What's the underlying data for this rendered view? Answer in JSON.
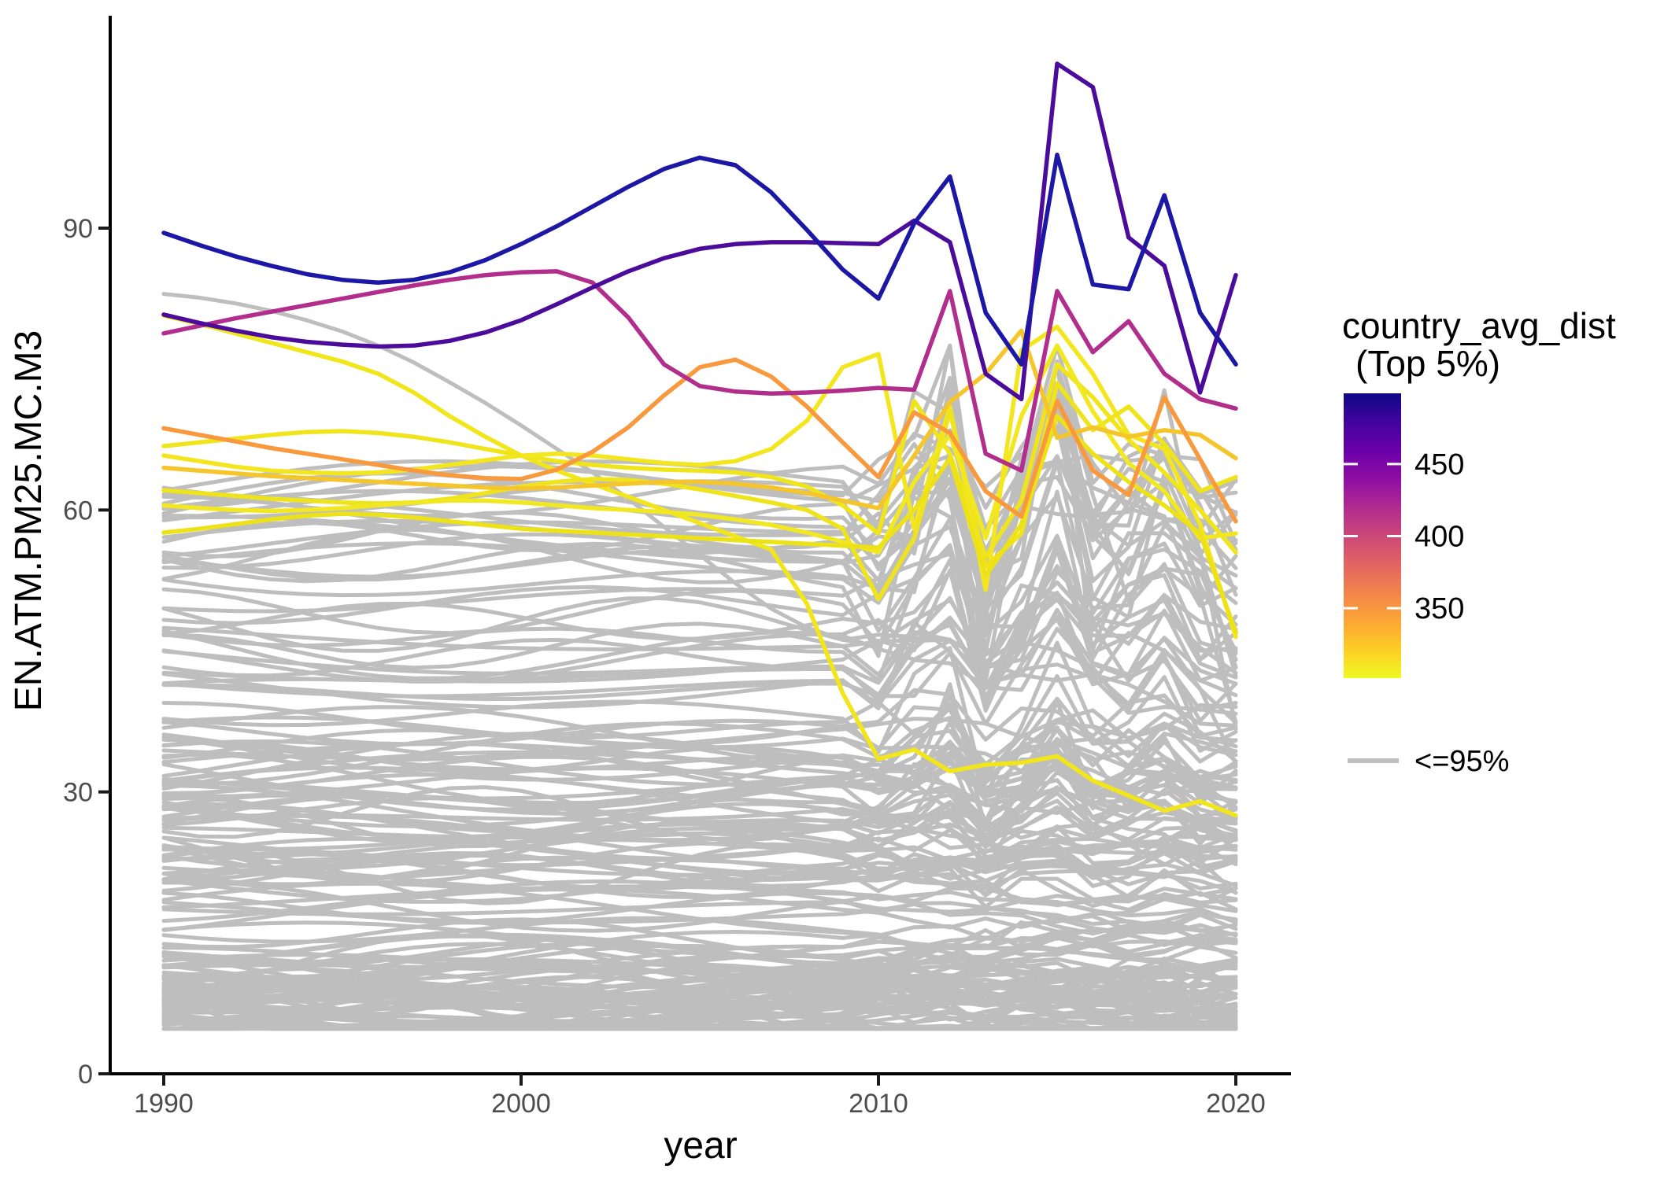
{
  "chart_data": {
    "type": "line",
    "title": "",
    "xlabel": "year",
    "ylabel": "EN.ATM.PM25.MC.M3",
    "x_ticks": [
      1990,
      2000,
      2010,
      2020
    ],
    "y_ticks": [
      0,
      30,
      60,
      90
    ],
    "xlim": [
      1988.5,
      2021.5
    ],
    "ylim": [
      0,
      112.5
    ],
    "grid": false,
    "years": [
      1990,
      1991,
      1992,
      1993,
      1994,
      1995,
      1996,
      1997,
      1998,
      1999,
      2000,
      2001,
      2002,
      2003,
      2004,
      2005,
      2006,
      2007,
      2008,
      2009,
      2010,
      2011,
      2012,
      2013,
      2014,
      2015,
      2016,
      2017,
      2018,
      2019,
      2020
    ],
    "legend": {
      "position": "right",
      "title_line1": "country_avg_dist",
      "title_line2": "(Top 5%)",
      "colorbar_ticks": [
        450,
        400,
        350
      ],
      "colorbar_value_range": [
        301.5,
        499
      ],
      "colorbar_stops": [
        {
          "o": 0.0,
          "c": "#0d0887"
        },
        {
          "o": 0.1,
          "c": "#41049d"
        },
        {
          "o": 0.2,
          "c": "#6a00a8"
        },
        {
          "o": 0.3,
          "c": "#8f0da4"
        },
        {
          "o": 0.4,
          "c": "#b12a90"
        },
        {
          "o": 0.5,
          "c": "#cc4778"
        },
        {
          "o": 0.6,
          "c": "#e16462"
        },
        {
          "o": 0.7,
          "c": "#f2844b"
        },
        {
          "o": 0.8,
          "c": "#fca636"
        },
        {
          "o": 0.9,
          "c": "#fcce25"
        },
        {
          "o": 1.0,
          "c": "#f0f921"
        }
      ],
      "gray_label": "<=95%",
      "gray_color": "#bebebe"
    },
    "series": [
      {
        "id": "gray-highlight",
        "group": "le95",
        "dist": null,
        "color": "#bebebe",
        "values": [
          83.0,
          82.6,
          82.0,
          81.2,
          80.2,
          79.0,
          77.5,
          75.7,
          73.6,
          71.4,
          69.0,
          66.5,
          64.0,
          61.2,
          58.2,
          55.2,
          52.2,
          49.5,
          47.5,
          46.2,
          45.5,
          52.0,
          65.0,
          50.0,
          57.0,
          72.0,
          65.0,
          60.0,
          63.0,
          52.0,
          45.0
        ]
      },
      {
        "id": "top5-yellow-descender",
        "group": "top5",
        "dist": 300,
        "color": "#f1e51c",
        "values": [
          80.7,
          79.8,
          78.8,
          77.8,
          76.8,
          75.8,
          74.5,
          72.5,
          70.0,
          67.8,
          65.8,
          64.2,
          62.8,
          61.4,
          60.0,
          58.6,
          57.2,
          55.8,
          50.0,
          40.5,
          33.5,
          34.5,
          32.2,
          32.9,
          33.1,
          33.8,
          31.2,
          29.6,
          28.0,
          29.0,
          27.5
        ]
      },
      {
        "id": "top5-yellow-2",
        "group": "top5",
        "dist": 310,
        "color": "#f0e41a",
        "values": [
          66.8,
          67.2,
          67.6,
          68.0,
          68.3,
          68.4,
          68.2,
          67.8,
          67.2,
          66.5,
          65.8,
          65.2,
          64.8,
          64.5,
          64.3,
          64.2,
          64.0,
          63.5,
          62.5,
          60.5,
          57.5,
          71.6,
          66.0,
          55.0,
          61.0,
          75.5,
          72.0,
          67.5,
          64.0,
          60.0,
          55.5
        ]
      },
      {
        "id": "top5-yellow-3",
        "group": "top5",
        "dist": 315,
        "color": "#f3e61f",
        "values": [
          65.8,
          65.2,
          64.6,
          64.2,
          64.0,
          63.9,
          64.0,
          64.3,
          64.8,
          65.3,
          65.8,
          66.0,
          65.8,
          65.4,
          65.0,
          64.8,
          65.2,
          66.5,
          69.5,
          75.2,
          76.6,
          58.0,
          71.0,
          51.5,
          77.0,
          79.5,
          74.5,
          68.0,
          66.5,
          58.5,
          46.5
        ]
      },
      {
        "id": "top5-yellow-4",
        "group": "top5",
        "dist": 320,
        "color": "#efe41c",
        "values": [
          62.1,
          61.8,
          61.5,
          61.2,
          61.0,
          60.8,
          60.7,
          60.8,
          61.2,
          61.8,
          62.5,
          63.0,
          63.3,
          63.2,
          62.8,
          62.2,
          61.5,
          60.8,
          60.0,
          58.0,
          50.5,
          57.0,
          70.5,
          54.0,
          57.5,
          73.5,
          68.5,
          71.0,
          67.0,
          62.0,
          63.5
        ]
      },
      {
        "id": "top5-yellow-5",
        "group": "top5",
        "dist": 326,
        "color": "#f2e822",
        "values": [
          60.5,
          60.2,
          60.0,
          59.9,
          60.0,
          60.2,
          60.5,
          60.8,
          61.0,
          61.0,
          60.8,
          60.5,
          60.2,
          60.0,
          59.8,
          59.5,
          59.0,
          58.4,
          57.6,
          56.6,
          55.5,
          63.0,
          68.0,
          57.0,
          70.0,
          77.5,
          70.5,
          65.0,
          62.0,
          57.0,
          57.5
        ]
      },
      {
        "id": "top5-yellow-6",
        "group": "top5",
        "dist": 332,
        "color": "#ece217",
        "values": [
          57.6,
          58.0,
          58.5,
          59.0,
          59.4,
          59.6,
          59.5,
          59.2,
          58.8,
          58.4,
          58.0,
          57.8,
          57.6,
          57.4,
          57.2,
          57.0,
          56.8,
          56.6,
          56.4,
          56.2,
          56.0,
          60.0,
          65.5,
          53.0,
          58.5,
          70.0,
          66.0,
          63.0,
          60.5,
          57.5,
          47.0
        ]
      },
      {
        "id": "top5-gold",
        "group": "top5",
        "dist": 340,
        "color": "#f5c52c",
        "values": [
          64.5,
          64.2,
          63.9,
          63.6,
          63.4,
          63.2,
          63.0,
          62.8,
          62.6,
          62.4,
          62.3,
          62.4,
          62.6,
          62.8,
          63.0,
          63.0,
          62.8,
          62.4,
          61.8,
          61.0,
          60.2,
          65.8,
          71.5,
          74.5,
          79.1,
          67.7,
          68.8,
          67.8,
          68.5,
          68.0,
          65.5
        ]
      },
      {
        "id": "top5-orange",
        "group": "top5",
        "dist": 352,
        "color": "#f8993e",
        "values": [
          68.7,
          68.0,
          67.3,
          66.6,
          66.0,
          65.4,
          64.8,
          64.2,
          63.7,
          63.4,
          63.3,
          64.3,
          66.2,
          68.8,
          72.2,
          75.2,
          76.0,
          74.2,
          71.0,
          67.2,
          63.5,
          70.4,
          68.2,
          62.0,
          59.3,
          71.6,
          64.2,
          61.6,
          72.0,
          65.4,
          58.8
        ]
      },
      {
        "id": "top5-magenta",
        "group": "top5",
        "dist": 420,
        "color": "#b22e8c",
        "values": [
          78.8,
          79.6,
          80.4,
          81.1,
          81.8,
          82.5,
          83.2,
          83.9,
          84.5,
          85.0,
          85.3,
          85.4,
          84.2,
          80.5,
          75.5,
          73.2,
          72.6,
          72.4,
          72.5,
          72.7,
          73.0,
          72.8,
          83.3,
          66.0,
          64.2,
          83.3,
          76.8,
          80.1,
          74.5,
          71.8,
          70.8
        ]
      },
      {
        "id": "top5-purple",
        "group": "top5",
        "dist": 462,
        "color": "#4b0c9c",
        "values": [
          80.8,
          79.9,
          79.1,
          78.4,
          77.9,
          77.6,
          77.4,
          77.5,
          78.0,
          78.9,
          80.2,
          81.9,
          83.7,
          85.4,
          86.8,
          87.8,
          88.3,
          88.5,
          88.5,
          88.4,
          88.3,
          90.8,
          88.5,
          74.5,
          71.8,
          107.5,
          105.0,
          89.0,
          86.0,
          72.5,
          85.0
        ]
      },
      {
        "id": "top5-navy",
        "group": "top5",
        "dist": 497,
        "color": "#1c17a5",
        "values": [
          89.5,
          88.2,
          87.0,
          86.0,
          85.1,
          84.5,
          84.2,
          84.5,
          85.3,
          86.6,
          88.3,
          90.2,
          92.3,
          94.4,
          96.3,
          97.5,
          96.7,
          93.8,
          89.8,
          85.6,
          82.5,
          90.5,
          95.5,
          81.0,
          75.5,
          97.8,
          84.0,
          83.5,
          93.5,
          81.0,
          75.5
        ]
      }
    ],
    "gray_lines_spec": {
      "count": 170,
      "seed": 42,
      "base_min": 5.2,
      "base_span": 57.0,
      "base_exp": 2.0,
      "shared_shock": {
        "2010": -1.5,
        "2011": 3.5,
        "2012": 9.0,
        "2013": -7.5,
        "2014": 1.5,
        "2015": 10.0,
        "2016": -2.5,
        "2017": -1.0,
        "2018": 3.0,
        "2019": -4.5,
        "2020": -7.5
      },
      "gain_base": 20,
      "gain_div": 45,
      "clamp": [
        4.8,
        77.5
      ]
    }
  }
}
